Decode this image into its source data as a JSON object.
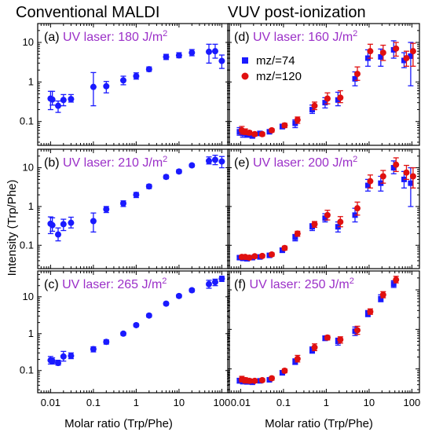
{
  "figure": {
    "left_title": "Conventional MALDI",
    "right_title": "VUV post-ionization",
    "ylabel": "Intensity (Trp/Phe)",
    "xlabel": "Molar ratio (Trp/Phe)",
    "xticks": [
      "0.01",
      "0.1",
      "1",
      "10",
      "100"
    ],
    "yticks": [
      "0.1",
      "1",
      "10"
    ],
    "annotation_color": "#9b30c8",
    "colors": {
      "blue": "#1a1aff",
      "red": "#e01010",
      "errbar_blue": "#1a1aff",
      "errbar_red": "#e01010"
    },
    "legend": [
      {
        "label": "mz/=74",
        "color": "#1a1aff",
        "marker": "square"
      },
      {
        "label": "mz/=120",
        "color": "#e01010",
        "marker": "circle"
      }
    ]
  },
  "chart_data": [
    {
      "type": "scatter",
      "panel": "(a)",
      "annotation_prefix": "UV laser: ",
      "annotation_value": "180 J/m",
      "annotation_sup": "2",
      "xscale": "log",
      "yscale": "log",
      "xlim": [
        0.005,
        150
      ],
      "ylim": [
        0.025,
        30
      ],
      "series": [
        {
          "color": "blue",
          "marker": "circle",
          "points": [
            [
              0.01,
              0.38,
              0.18,
              0.2
            ],
            [
              0.011,
              0.36,
              0.1,
              0.22
            ],
            [
              0.015,
              0.25,
              0.08,
              0.08
            ],
            [
              0.02,
              0.35,
              0.1,
              0.13
            ],
            [
              0.03,
              0.37,
              0.06,
              0.11
            ],
            [
              0.1,
              0.75,
              0.5,
              0.98
            ],
            [
              0.2,
              0.78,
              0.25,
              0.25
            ],
            [
              0.5,
              1.1,
              0.25,
              0.3
            ],
            [
              1,
              1.4,
              0.22,
              0.3
            ],
            [
              2,
              2.1,
              0.25,
              0.3
            ],
            [
              5,
              4.3,
              0.6,
              0.7
            ],
            [
              10,
              4.7,
              0.6,
              0.8
            ],
            [
              20,
              5.5,
              0.9,
              1.1
            ],
            [
              50,
              5.8,
              2.8,
              3.2
            ],
            [
              70,
              6.0,
              2.0,
              3.0
            ],
            [
              100,
              3.4,
              1.2,
              1.4
            ]
          ]
        }
      ]
    },
    {
      "type": "scatter",
      "panel": "(b)",
      "annotation_prefix": "UV laser: ",
      "annotation_value": "210 J/m",
      "annotation_sup": "2",
      "xscale": "log",
      "yscale": "log",
      "xlim": [
        0.005,
        150
      ],
      "ylim": [
        0.025,
        30
      ],
      "series": [
        {
          "color": "blue",
          "marker": "circle",
          "points": [
            [
              0.01,
              0.36,
              0.16,
              0.18
            ],
            [
              0.011,
              0.33,
              0.1,
              0.18
            ],
            [
              0.015,
              0.19,
              0.06,
              0.09
            ],
            [
              0.02,
              0.35,
              0.11,
              0.12
            ],
            [
              0.03,
              0.38,
              0.1,
              0.15
            ],
            [
              0.1,
              0.42,
              0.2,
              0.26
            ],
            [
              0.2,
              0.85,
              0.15,
              0.15
            ],
            [
              0.5,
              1.2,
              0.2,
              0.2
            ],
            [
              1,
              2.0,
              0.3,
              0.3
            ],
            [
              2,
              3.3,
              0.4,
              0.4
            ],
            [
              5,
              5.8,
              0.6,
              0.6
            ],
            [
              10,
              8.0,
              0.8,
              0.9
            ],
            [
              20,
              11.5,
              1.0,
              1.0
            ],
            [
              50,
              15.0,
              2.5,
              4.0
            ],
            [
              70,
              16.0,
              4.0,
              5.0
            ],
            [
              100,
              14.5,
              4.5,
              5.0
            ]
          ]
        }
      ]
    },
    {
      "type": "scatter",
      "panel": "(c)",
      "annotation_prefix": "UV laser: ",
      "annotation_value": "265 J/m",
      "annotation_sup": "2",
      "xscale": "log",
      "yscale": "log",
      "xlim": [
        0.005,
        150
      ],
      "ylim": [
        0.025,
        50
      ],
      "series": [
        {
          "color": "blue",
          "marker": "circle",
          "points": [
            [
              0.01,
              0.19,
              0.04,
              0.05
            ],
            [
              0.011,
              0.18,
              0.03,
              0.04
            ],
            [
              0.015,
              0.16,
              0.02,
              0.03
            ],
            [
              0.02,
              0.24,
              0.06,
              0.09
            ],
            [
              0.03,
              0.25,
              0.04,
              0.05
            ],
            [
              0.1,
              0.38,
              0.06,
              0.06
            ],
            [
              0.2,
              0.6,
              0.08,
              0.08
            ],
            [
              0.5,
              1.0,
              0.1,
              0.1
            ],
            [
              1,
              1.7,
              0.15,
              0.15
            ],
            [
              2,
              3.1,
              0.3,
              0.3
            ],
            [
              5,
              6.5,
              0.6,
              0.6
            ],
            [
              10,
              10.5,
              1.0,
              1.0
            ],
            [
              20,
              15.0,
              1.5,
              1.5
            ],
            [
              50,
              22.0,
              5.0,
              6.0
            ],
            [
              70,
              25.0,
              5.0,
              5.0
            ],
            [
              100,
              31.0,
              5.0,
              5.0
            ]
          ]
        }
      ]
    },
    {
      "type": "scatter",
      "panel": "(d)",
      "annotation_prefix": "UV laser: ",
      "annotation_value": "160 J/m",
      "annotation_sup": "2",
      "xscale": "log",
      "yscale": "log",
      "xlim": [
        0.005,
        150
      ],
      "ylim": [
        0.025,
        30
      ],
      "series": [
        {
          "name": "mz/=74",
          "color": "blue",
          "marker": "square",
          "points": [
            [
              0.01,
              0.055,
              0.01,
              0.015
            ],
            [
              0.012,
              0.05,
              0.01,
              0.01
            ],
            [
              0.015,
              0.046,
              0.006,
              0.006
            ],
            [
              0.02,
              0.043,
              0.005,
              0.005
            ],
            [
              0.03,
              0.05,
              0.005,
              0.005
            ],
            [
              0.05,
              0.055,
              0.006,
              0.006
            ],
            [
              0.1,
              0.075,
              0.01,
              0.01
            ],
            [
              0.2,
              0.09,
              0.02,
              0.02
            ],
            [
              0.5,
              0.2,
              0.04,
              0.06
            ],
            [
              1,
              0.3,
              0.08,
              0.1
            ],
            [
              2,
              0.35,
              0.1,
              0.2
            ],
            [
              5,
              1.2,
              0.4,
              0.6
            ],
            [
              10,
              4.0,
              1.5,
              2.5
            ],
            [
              20,
              4.3,
              1.8,
              2.5
            ],
            [
              40,
              6.5,
              2.5,
              4.5
            ],
            [
              70,
              3.5,
              1.2,
              2.0
            ],
            [
              100,
              4.5,
              3.7,
              5.5
            ]
          ]
        },
        {
          "name": "mz/=120",
          "color": "red",
          "marker": "circle",
          "points": [
            [
              0.01,
              0.06,
              0.012,
              0.015
            ],
            [
              0.012,
              0.055,
              0.008,
              0.01
            ],
            [
              0.015,
              0.052,
              0.006,
              0.006
            ],
            [
              0.02,
              0.048,
              0.005,
              0.005
            ],
            [
              0.03,
              0.048,
              0.005,
              0.005
            ],
            [
              0.05,
              0.06,
              0.006,
              0.006
            ],
            [
              0.1,
              0.08,
              0.01,
              0.01
            ],
            [
              0.2,
              0.11,
              0.02,
              0.02
            ],
            [
              0.5,
              0.25,
              0.05,
              0.06
            ],
            [
              1,
              0.38,
              0.1,
              0.15
            ],
            [
              2,
              0.4,
              0.1,
              0.2
            ],
            [
              5,
              1.6,
              0.5,
              0.8
            ],
            [
              10,
              6.0,
              2.0,
              3.0
            ],
            [
              20,
              5.5,
              2.0,
              3.0
            ],
            [
              40,
              7.0,
              2.5,
              3.0
            ],
            [
              70,
              4.0,
              1.5,
              2.0
            ],
            [
              100,
              6.0,
              3.5,
              3.5
            ]
          ]
        }
      ]
    },
    {
      "type": "scatter",
      "panel": "(e)",
      "annotation_prefix": "UV laser: ",
      "annotation_value": "200 J/m",
      "annotation_sup": "2",
      "xscale": "log",
      "yscale": "log",
      "xlim": [
        0.005,
        150
      ],
      "ylim": [
        0.025,
        30
      ],
      "series": [
        {
          "name": "mz/=74",
          "color": "blue",
          "marker": "square",
          "points": [
            [
              0.01,
              0.048,
              0.005,
              0.005
            ],
            [
              0.012,
              0.046,
              0.005,
              0.005
            ],
            [
              0.015,
              0.045,
              0.005,
              0.005
            ],
            [
              0.02,
              0.048,
              0.005,
              0.005
            ],
            [
              0.03,
              0.05,
              0.005,
              0.005
            ],
            [
              0.05,
              0.055,
              0.005,
              0.005
            ],
            [
              0.1,
              0.075,
              0.01,
              0.01
            ],
            [
              0.2,
              0.16,
              0.03,
              0.03
            ],
            [
              0.5,
              0.3,
              0.06,
              0.06
            ],
            [
              1,
              0.5,
              0.1,
              0.15
            ],
            [
              2,
              0.3,
              0.08,
              0.1
            ],
            [
              5,
              0.6,
              0.2,
              0.3
            ],
            [
              10,
              3.5,
              1.0,
              1.5
            ],
            [
              20,
              4.0,
              1.5,
              2.0
            ],
            [
              40,
              10.0,
              3.0,
              5.0
            ],
            [
              70,
              5.0,
              2.0,
              3.0
            ],
            [
              100,
              4.0,
              3.0,
              6.0
            ]
          ]
        },
        {
          "name": "mz/=120",
          "color": "red",
          "marker": "circle",
          "points": [
            [
              0.01,
              0.05,
              0.005,
              0.005
            ],
            [
              0.012,
              0.05,
              0.005,
              0.005
            ],
            [
              0.015,
              0.048,
              0.005,
              0.005
            ],
            [
              0.02,
              0.052,
              0.005,
              0.005
            ],
            [
              0.03,
              0.053,
              0.005,
              0.005
            ],
            [
              0.05,
              0.058,
              0.006,
              0.006
            ],
            [
              0.1,
              0.085,
              0.01,
              0.01
            ],
            [
              0.2,
              0.2,
              0.03,
              0.03
            ],
            [
              0.5,
              0.35,
              0.06,
              0.06
            ],
            [
              1,
              0.6,
              0.15,
              0.2
            ],
            [
              2,
              0.4,
              0.1,
              0.15
            ],
            [
              5,
              0.9,
              0.3,
              0.4
            ],
            [
              10,
              4.5,
              1.5,
              2.0
            ],
            [
              20,
              6.0,
              2.0,
              2.5
            ],
            [
              40,
              12.0,
              4.0,
              6.0
            ],
            [
              70,
              7.5,
              2.5,
              4.0
            ],
            [
              100,
              6.0,
              3.0,
              4.0
            ]
          ]
        }
      ]
    },
    {
      "type": "scatter",
      "panel": "(f)",
      "annotation_prefix": "UV laser: ",
      "annotation_value": "250 J/m",
      "annotation_sup": "2",
      "xscale": "log",
      "yscale": "log",
      "xlim": [
        0.005,
        150
      ],
      "ylim": [
        0.025,
        30
      ],
      "series": [
        {
          "name": "mz/=74",
          "color": "blue",
          "marker": "square",
          "points": [
            [
              0.01,
              0.05,
              0.006,
              0.008
            ],
            [
              0.012,
              0.048,
              0.006,
              0.006
            ],
            [
              0.015,
              0.047,
              0.005,
              0.005
            ],
            [
              0.02,
              0.046,
              0.005,
              0.005
            ],
            [
              0.03,
              0.05,
              0.005,
              0.005
            ],
            [
              0.05,
              0.053,
              0.005,
              0.005
            ],
            [
              0.1,
              0.08,
              0.01,
              0.01
            ],
            [
              0.2,
              0.15,
              0.02,
              0.03
            ],
            [
              0.5,
              0.3,
              0.05,
              0.06
            ],
            [
              1,
              0.6,
              0.08,
              0.08
            ],
            [
              2,
              0.5,
              0.1,
              0.1
            ],
            [
              5,
              0.9,
              0.2,
              0.25
            ],
            [
              10,
              2.5,
              0.4,
              0.5
            ],
            [
              20,
              6.0,
              1.0,
              1.5
            ],
            [
              40,
              14.0,
              2.5,
              3.0
            ]
          ]
        },
        {
          "name": "mz/=120",
          "color": "red",
          "marker": "circle",
          "points": [
            [
              0.01,
              0.055,
              0.008,
              0.01
            ],
            [
              0.012,
              0.052,
              0.008,
              0.008
            ],
            [
              0.015,
              0.05,
              0.006,
              0.006
            ],
            [
              0.02,
              0.05,
              0.005,
              0.005
            ],
            [
              0.03,
              0.052,
              0.005,
              0.005
            ],
            [
              0.05,
              0.058,
              0.006,
              0.006
            ],
            [
              0.1,
              0.09,
              0.01,
              0.01
            ],
            [
              0.2,
              0.18,
              0.03,
              0.04
            ],
            [
              0.5,
              0.35,
              0.06,
              0.08
            ],
            [
              1,
              0.62,
              0.08,
              0.08
            ],
            [
              2,
              0.55,
              0.1,
              0.1
            ],
            [
              5,
              0.95,
              0.2,
              0.25
            ],
            [
              10,
              2.8,
              0.4,
              0.5
            ],
            [
              20,
              7.5,
              1.2,
              1.5
            ],
            [
              40,
              18.0,
              3.0,
              4.0
            ]
          ]
        }
      ]
    }
  ]
}
